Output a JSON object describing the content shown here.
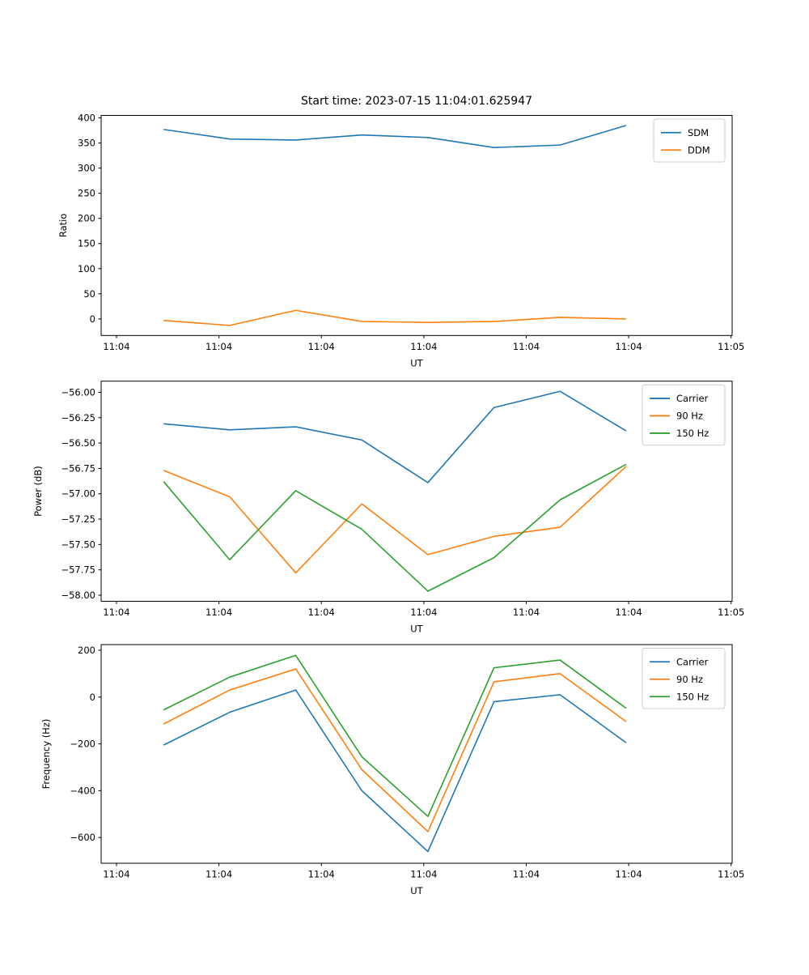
{
  "figure": {
    "background": "#ffffff",
    "text_color": "#000000",
    "frame_color": "#000000",
    "legend_border_color": "#cccccc"
  },
  "chart_data": [
    {
      "type": "line",
      "title": "Start time: 2023-07-15 11:04:01.625947",
      "xlabel": "UT",
      "ylabel": "Ratio",
      "grid": false,
      "legend_position": "upper right",
      "xlim": [
        -1.5,
        60.1
      ],
      "ylim": [
        -33,
        405
      ],
      "x_ticks": [
        0,
        10,
        20,
        30,
        40,
        50,
        60
      ],
      "x_tick_labels": [
        "11:04",
        "11:04",
        "11:04",
        "11:04",
        "11:04",
        "11:04",
        "11:05"
      ],
      "y_ticks": [
        0,
        50,
        100,
        150,
        200,
        250,
        300,
        350,
        400
      ],
      "y_tick_labels": [
        "0",
        "50",
        "100",
        "150",
        "200",
        "250",
        "300",
        "350",
        "400"
      ],
      "x": [
        4.6,
        11.05,
        17.5,
        23.95,
        30.4,
        36.85,
        43.3,
        49.75
      ],
      "series": [
        {
          "name": "SDM",
          "color": "#1f77b4",
          "values": [
            377,
            358,
            356,
            366,
            361,
            341,
            346,
            385
          ]
        },
        {
          "name": "DDM",
          "color": "#ff7f0e",
          "values": [
            -3,
            -13,
            17,
            -5,
            -7,
            -5,
            3,
            0
          ]
        }
      ]
    },
    {
      "type": "line",
      "title": "",
      "xlabel": "UT",
      "ylabel": "Power (dB)",
      "grid": false,
      "legend_position": "upper right",
      "xlim": [
        -1.5,
        60.1
      ],
      "ylim": [
        -58.06,
        -55.89
      ],
      "x_ticks": [
        0,
        10,
        20,
        30,
        40,
        50,
        60
      ],
      "x_tick_labels": [
        "11:04",
        "11:04",
        "11:04",
        "11:04",
        "11:04",
        "11:04",
        "11:05"
      ],
      "y_ticks": [
        -58.0,
        -57.75,
        -57.5,
        -57.25,
        -57.0,
        -56.75,
        -56.5,
        -56.25,
        -56.0
      ],
      "y_tick_labels": [
        "−58.00",
        "−57.75",
        "−57.50",
        "−57.25",
        "−57.00",
        "−56.75",
        "−56.50",
        "−56.25",
        "−56.00"
      ],
      "x": [
        4.6,
        11.05,
        17.5,
        23.95,
        30.4,
        36.85,
        43.3,
        49.75
      ],
      "series": [
        {
          "name": "Carrier",
          "color": "#1f77b4",
          "values": [
            -56.31,
            -56.37,
            -56.34,
            -56.47,
            -56.89,
            -56.15,
            -55.99,
            -56.38
          ]
        },
        {
          "name": "90 Hz",
          "color": "#ff7f0e",
          "values": [
            -56.77,
            -57.03,
            -57.78,
            -57.1,
            -57.6,
            -57.42,
            -57.33,
            -56.73
          ]
        },
        {
          "name": "150 Hz",
          "color": "#2ca02c",
          "values": [
            -56.88,
            -57.65,
            -56.97,
            -57.35,
            -57.96,
            -57.63,
            -57.06,
            -56.71
          ]
        }
      ]
    },
    {
      "type": "line",
      "title": "",
      "xlabel": "UT",
      "ylabel": "Frequency (Hz)",
      "grid": false,
      "legend_position": "upper right",
      "xlim": [
        -1.5,
        60.1
      ],
      "ylim": [
        -710,
        224
      ],
      "x_ticks": [
        0,
        10,
        20,
        30,
        40,
        50,
        60
      ],
      "x_tick_labels": [
        "11:04",
        "11:04",
        "11:04",
        "11:04",
        "11:04",
        "11:04",
        "11:05"
      ],
      "y_ticks": [
        -600,
        -400,
        -200,
        0,
        200
      ],
      "y_tick_labels": [
        "−600",
        "−400",
        "−200",
        "0",
        "200"
      ],
      "x": [
        4.6,
        11.05,
        17.5,
        23.95,
        30.4,
        36.85,
        43.3,
        49.75
      ],
      "series": [
        {
          "name": "Carrier",
          "color": "#1f77b4",
          "values": [
            -205,
            -65,
            30,
            -400,
            -660,
            -20,
            10,
            -195
          ]
        },
        {
          "name": "90 Hz",
          "color": "#ff7f0e",
          "values": [
            -115,
            30,
            120,
            -310,
            -575,
            65,
            100,
            -105
          ]
        },
        {
          "name": "150 Hz",
          "color": "#2ca02c",
          "values": [
            -55,
            85,
            178,
            -255,
            -510,
            125,
            158,
            -48
          ]
        }
      ]
    }
  ]
}
